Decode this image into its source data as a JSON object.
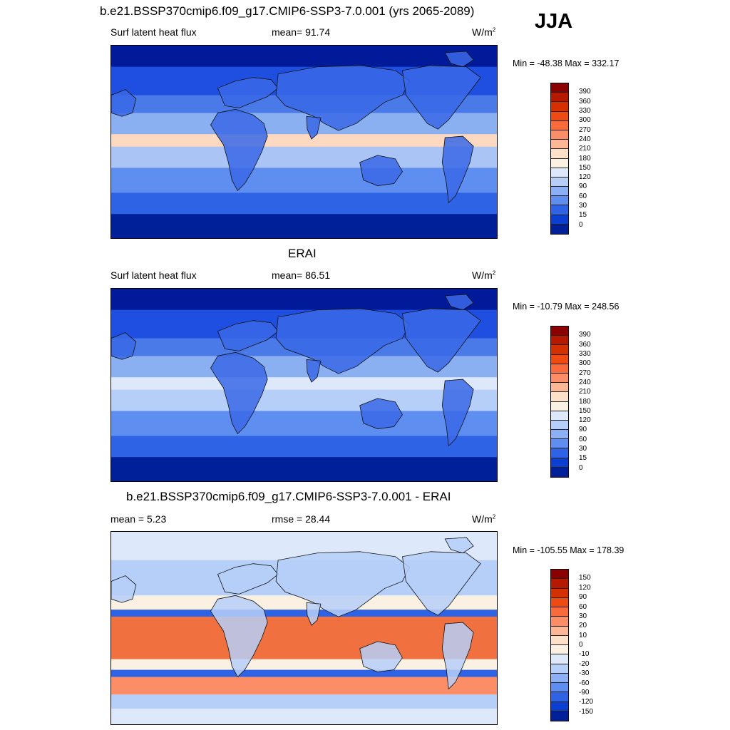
{
  "season": "JJA",
  "panels": [
    {
      "title": "b.e21.BSSP370cmip6.f09_g17.CMIP6-SSP3-7.0.001 (yrs 2065-2089)",
      "left_label": "Surf latent heat flux",
      "mid_label": "mean=  91.74",
      "unit_base": "W/m",
      "unit_exp": "2",
      "minmax": "Min = -48.38 Max = 332.17",
      "colorbar": {
        "labels": [
          "390",
          "360",
          "330",
          "300",
          "270",
          "240",
          "210",
          "180",
          "150",
          "120",
          "90",
          "60",
          "30",
          "15",
          "0"
        ],
        "colors": [
          "#8b0000",
          "#b51a00",
          "#d43000",
          "#ee4a12",
          "#fa6b3c",
          "#fc8e67",
          "#fdb795",
          "#fde0c8",
          "#fbf1e2",
          "#dde9fb",
          "#b6cff8",
          "#8cb0f5",
          "#5e8ef0",
          "#2f63e6",
          "#0a3fd2",
          "#00209a"
        ]
      },
      "map_palette": "model"
    },
    {
      "title": "ERAI",
      "left_label": "Surf latent heat flux",
      "mid_label": "mean=  86.51",
      "unit_base": "W/m",
      "unit_exp": "2",
      "minmax": "Min = -10.79 Max = 248.56",
      "colorbar": {
        "labels": [
          "390",
          "360",
          "330",
          "300",
          "270",
          "240",
          "210",
          "180",
          "150",
          "120",
          "90",
          "60",
          "30",
          "15",
          "0"
        ],
        "colors": [
          "#8b0000",
          "#b51a00",
          "#d43000",
          "#ee4a12",
          "#fa6b3c",
          "#fc8e67",
          "#fdb795",
          "#fde0c8",
          "#fbf1e2",
          "#dde9fb",
          "#b6cff8",
          "#8cb0f5",
          "#5e8ef0",
          "#2f63e6",
          "#0a3fd2",
          "#00209a"
        ]
      },
      "map_palette": "obs"
    },
    {
      "title": "b.e21.BSSP370cmip6.f09_g17.CMIP6-SSP3-7.0.001 - ERAI",
      "left_label": "mean =   5.23",
      "mid_label": "rmse =  28.44",
      "unit_base": "W/m",
      "unit_exp": "2",
      "minmax": "Min = -105.55 Max = 178.39",
      "colorbar": {
        "labels": [
          "150",
          "120",
          "90",
          "60",
          "30",
          "20",
          "10",
          "0",
          "-10",
          "-20",
          "-30",
          "-60",
          "-90",
          "-120",
          "-150"
        ],
        "colors": [
          "#8b0000",
          "#b51a00",
          "#d43000",
          "#ee4a12",
          "#fa6b3c",
          "#fc8e67",
          "#fdb795",
          "#fde0c8",
          "#fbf1e2",
          "#dde9fb",
          "#b6cff8",
          "#8cb0f5",
          "#5e8ef0",
          "#2f63e6",
          "#0a3fd2",
          "#00209a"
        ]
      },
      "map_palette": "diff"
    }
  ]
}
